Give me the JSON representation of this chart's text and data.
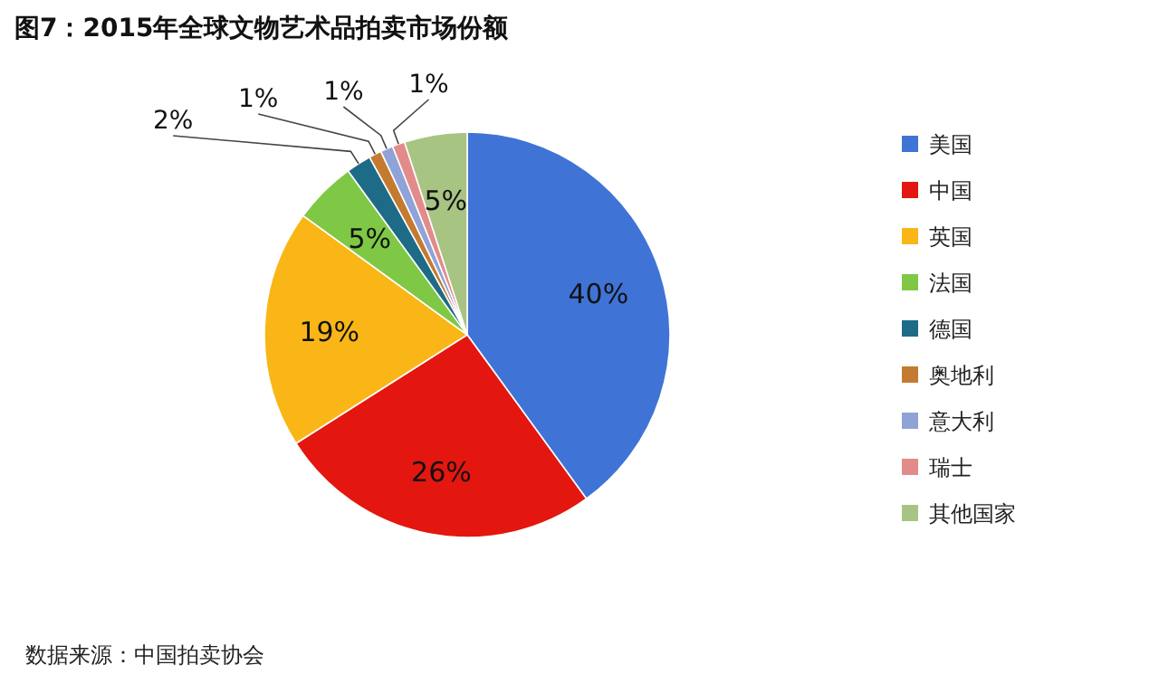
{
  "chart_data": {
    "type": "pie",
    "title": "图7：2015年全球文物艺术品拍卖市场份额",
    "categories": [
      "美国",
      "中国",
      "英国",
      "法国",
      "德国",
      "奥地利",
      "意大利",
      "瑞士",
      "其他国家"
    ],
    "values": [
      40,
      26,
      19,
      5,
      2,
      1,
      1,
      1,
      5
    ],
    "value_labels": [
      "40%",
      "26%",
      "19%",
      "5%",
      "2%",
      "1%",
      "1%",
      "1%",
      "5%"
    ],
    "colors": [
      "#3f74d6",
      "#e3170f",
      "#f9b616",
      "#7fc845",
      "#1d6b86",
      "#c47a30",
      "#8fa3d8",
      "#e38b8b",
      "#a8c483"
    ],
    "legend": "right",
    "annotations": [
      "数据来源：中国拍卖协会"
    ]
  }
}
